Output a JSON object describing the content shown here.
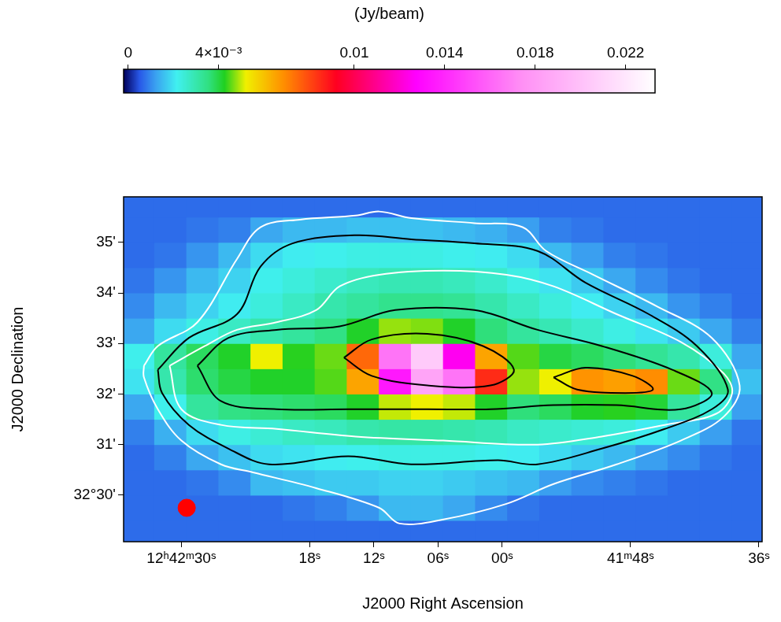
{
  "chart_data": {
    "type": "heatmap",
    "x_label": "J2000 Right Ascension",
    "y_label": "J2000 Declination",
    "xlim": [
      155.4,
      95.7
    ],
    "xticks": [
      {
        "value": 150,
        "label": "12ʰ42ᵐ30ˢ"
      },
      {
        "value": 138,
        "label": "18ˢ"
      },
      {
        "value": 132,
        "label": "12ˢ"
      },
      {
        "value": 126,
        "label": "06ˢ"
      },
      {
        "value": 120,
        "label": "00ˢ"
      },
      {
        "value": 108,
        "label": "41ᵐ48ˢ"
      },
      {
        "value": 96,
        "label": "36ˢ"
      }
    ],
    "ylim": [
      29.08,
      35.9
    ],
    "yticks": [
      {
        "value": 30,
        "label": "32°30'"
      },
      {
        "value": 31,
        "label": "31'"
      },
      {
        "value": 32,
        "label": "32'"
      },
      {
        "value": 33,
        "label": "33'"
      },
      {
        "value": 34,
        "label": "34'"
      },
      {
        "value": 35,
        "label": "35'"
      }
    ],
    "grid": false,
    "x": [
      154,
      151,
      148,
      145,
      142,
      139,
      136,
      133,
      130,
      127,
      124,
      121,
      118,
      115,
      112,
      109,
      106,
      103,
      100,
      97
    ],
    "y": [
      29.25,
      29.75,
      30.25,
      30.75,
      31.25,
      31.75,
      32.25,
      32.75,
      33.25,
      33.75,
      34.25,
      34.75,
      35.25,
      35.75
    ],
    "cells": [
      [
        0.0007,
        0.0007,
        0.0007,
        0.0007,
        0.0007,
        0.0007,
        0.0007,
        0.0007,
        0.0007,
        0.0007,
        0.0007,
        0.0007,
        0.0007,
        0.0007,
        0.0007,
        0.0007,
        0.0007,
        0.0007,
        0.0007,
        0.0007
      ],
      [
        0.0007,
        0.0007,
        0.0007,
        0.0007,
        0.0007,
        0.0008,
        0.0009,
        0.0011,
        0.0015,
        0.0015,
        0.0013,
        0.001,
        0.0008,
        0.0007,
        0.0007,
        0.0007,
        0.0007,
        0.0007,
        0.0007,
        0.0007
      ],
      [
        0.0007,
        0.0007,
        0.0008,
        0.001,
        0.0015,
        0.0016,
        0.0017,
        0.0017,
        0.0018,
        0.0018,
        0.0017,
        0.0016,
        0.0015,
        0.0012,
        0.001,
        0.0009,
        0.0008,
        0.0007,
        0.0007,
        0.0007
      ],
      [
        0.0007,
        0.0009,
        0.0013,
        0.0016,
        0.0019,
        0.002,
        0.0021,
        0.0022,
        0.0023,
        0.0023,
        0.0023,
        0.0022,
        0.0021,
        0.0019,
        0.0017,
        0.0015,
        0.0012,
        0.001,
        0.0008,
        0.0007
      ],
      [
        0.0009,
        0.0014,
        0.0019,
        0.0023,
        0.0025,
        0.0027,
        0.0028,
        0.003,
        0.0031,
        0.0031,
        0.003,
        0.0029,
        0.0027,
        0.0026,
        0.0025,
        0.0024,
        0.0021,
        0.0017,
        0.0012,
        0.0008
      ],
      [
        0.0013,
        0.0022,
        0.0032,
        0.0035,
        0.0036,
        0.0037,
        0.0038,
        0.0042,
        0.005,
        0.0052,
        0.005,
        0.0042,
        0.0036,
        0.0038,
        0.0042,
        0.0043,
        0.0041,
        0.0032,
        0.0024,
        0.0012
      ],
      [
        0.002,
        0.003,
        0.0037,
        0.004,
        0.0042,
        0.0042,
        0.0045,
        0.0065,
        0.0135,
        0.0185,
        0.0165,
        0.0085,
        0.0048,
        0.0052,
        0.0068,
        0.0066,
        0.0069,
        0.0046,
        0.0035,
        0.0016
      ],
      [
        0.0022,
        0.0032,
        0.0038,
        0.0042,
        0.0052,
        0.0043,
        0.0046,
        0.0075,
        0.0165,
        0.0205,
        0.0125,
        0.0065,
        0.0045,
        0.004,
        0.0038,
        0.0036,
        0.0033,
        0.003,
        0.0024,
        0.0013
      ],
      [
        0.0013,
        0.0019,
        0.0023,
        0.0027,
        0.003,
        0.0032,
        0.0035,
        0.0042,
        0.0048,
        0.0047,
        0.0042,
        0.0036,
        0.0032,
        0.0029,
        0.0026,
        0.0023,
        0.002,
        0.0017,
        0.0013,
        0.0009
      ],
      [
        0.001,
        0.0015,
        0.0018,
        0.0021,
        0.0024,
        0.0027,
        0.003,
        0.0032,
        0.0034,
        0.0034,
        0.0033,
        0.003,
        0.0027,
        0.0024,
        0.0021,
        0.0018,
        0.0015,
        0.0011,
        0.0009,
        0.0007
      ],
      [
        0.0008,
        0.0011,
        0.0015,
        0.0018,
        0.0022,
        0.0024,
        0.0026,
        0.0028,
        0.0029,
        0.0029,
        0.0028,
        0.0026,
        0.0023,
        0.002,
        0.0017,
        0.0013,
        0.001,
        0.0008,
        0.0007,
        0.0007
      ],
      [
        0.0007,
        0.0008,
        0.0011,
        0.0015,
        0.0019,
        0.0021,
        0.0022,
        0.0023,
        0.0023,
        0.0023,
        0.0022,
        0.0021,
        0.0019,
        0.0015,
        0.0012,
        0.0009,
        0.0008,
        0.0007,
        0.0007,
        0.0007
      ],
      [
        0.0007,
        0.0007,
        0.0008,
        0.0009,
        0.0013,
        0.0015,
        0.0015,
        0.0016,
        0.0016,
        0.0016,
        0.0015,
        0.0014,
        0.0012,
        0.0009,
        0.0008,
        0.0007,
        0.0007,
        0.0007,
        0.0007,
        0.0007
      ],
      [
        0.0007,
        0.0007,
        0.0007,
        0.0007,
        0.0007,
        0.0007,
        0.0007,
        0.0007,
        0.0007,
        0.0007,
        0.0007,
        0.0007,
        0.0007,
        0.0007,
        0.0007,
        0.0007,
        0.0007,
        0.0007,
        0.0007,
        0.0007
      ]
    ],
    "colorbar": {
      "title": "(Jy/beam)",
      "range": [
        -0.0002,
        0.0233
      ],
      "ticks": [
        0,
        {
          "value": 0.004,
          "label": "4×10⁻³"
        },
        0.01,
        0.014,
        0.018,
        0.022
      ]
    },
    "contours": [
      {
        "color": "white",
        "x": [
          153.5,
          152.2,
          148.5,
          144.8,
          142.6,
          138.9,
          133.7,
          131.5,
          128.5,
          122.6,
          118.1,
          115.9,
          111.5,
          105.5,
          100.4,
          97.8,
          99.3,
          103.3,
          109.3,
          115.2,
          119.6,
          125.5,
          129.6,
          131.5,
          137.4,
          143.3,
          146.3,
          150.0,
          152.2,
          153.5
        ],
        "y": [
          32.56,
          32.95,
          33.42,
          34.67,
          35.3,
          35.45,
          35.53,
          35.61,
          35.48,
          35.38,
          35.3,
          34.83,
          34.36,
          33.73,
          33.11,
          32.17,
          31.55,
          31.08,
          30.61,
          30.22,
          29.83,
          29.52,
          29.44,
          29.75,
          30.14,
          30.45,
          30.61,
          31.08,
          31.7,
          32.33
        ]
      },
      {
        "color": "black",
        "x": [
          152.2,
          149.3,
          144.8,
          142.6,
          139.6,
          133.7,
          128.5,
          122.6,
          116.7,
          112.2,
          106.3,
          101.8,
          98.9,
          100.4,
          104.8,
          110.7,
          116.7,
          120.4,
          128.5,
          134.4,
          141.8,
          145.6,
          149.3,
          151.8
        ],
        "y": [
          32.48,
          33.11,
          33.58,
          34.52,
          34.98,
          35.14,
          35.06,
          34.98,
          34.83,
          34.2,
          33.58,
          32.95,
          32.09,
          31.7,
          31.31,
          30.92,
          30.61,
          30.69,
          30.61,
          30.77,
          30.61,
          30.92,
          31.39,
          32.02
        ]
      },
      {
        "color": "white",
        "x": [
          151.1,
          147.8,
          144.8,
          141.1,
          137.4,
          135.2,
          131.5,
          125.5,
          119.6,
          115.2,
          109.3,
          103.3,
          99.3,
          98.5,
          100.0,
          104.8,
          110.7,
          116.7,
          125.5,
          133.7,
          141.1,
          146.3,
          150.0
        ],
        "y": [
          32.56,
          32.95,
          33.27,
          33.42,
          33.66,
          34.13,
          34.36,
          34.44,
          34.36,
          34.13,
          33.58,
          33.03,
          32.41,
          32.02,
          31.61,
          31.39,
          31.16,
          31.0,
          31.08,
          31.16,
          31.31,
          31.39,
          31.7
        ]
      },
      {
        "color": "black",
        "x": [
          148.5,
          145.6,
          141.1,
          135.2,
          130.0,
          122.6,
          116.7,
          110.7,
          104.1,
          100.4,
          103.3,
          109.3,
          115.2,
          121.1,
          127.0,
          134.4,
          141.1,
          146.3
        ],
        "y": [
          32.56,
          33.11,
          33.27,
          33.34,
          33.66,
          33.66,
          33.27,
          32.95,
          32.48,
          32.02,
          31.7,
          31.78,
          31.78,
          31.7,
          31.7,
          31.7,
          31.7,
          31.86
        ]
      },
      {
        "color": "black",
        "x": [
          134.8,
          132.2,
          127.0,
          121.8,
          118.9,
          121.1,
          127.0,
          132.2
        ],
        "y": [
          32.72,
          33.08,
          33.19,
          32.95,
          32.48,
          32.17,
          32.17,
          32.36
        ]
      },
      {
        "color": "black",
        "x": [
          115.2,
          112.2,
          107.8,
          105.9,
          108.5,
          113.0
        ],
        "y": [
          32.33,
          32.52,
          32.36,
          32.09,
          32.02,
          32.09
        ]
      }
    ],
    "beam": {
      "x": 149.5,
      "y": 29.75,
      "color": "red"
    }
  }
}
